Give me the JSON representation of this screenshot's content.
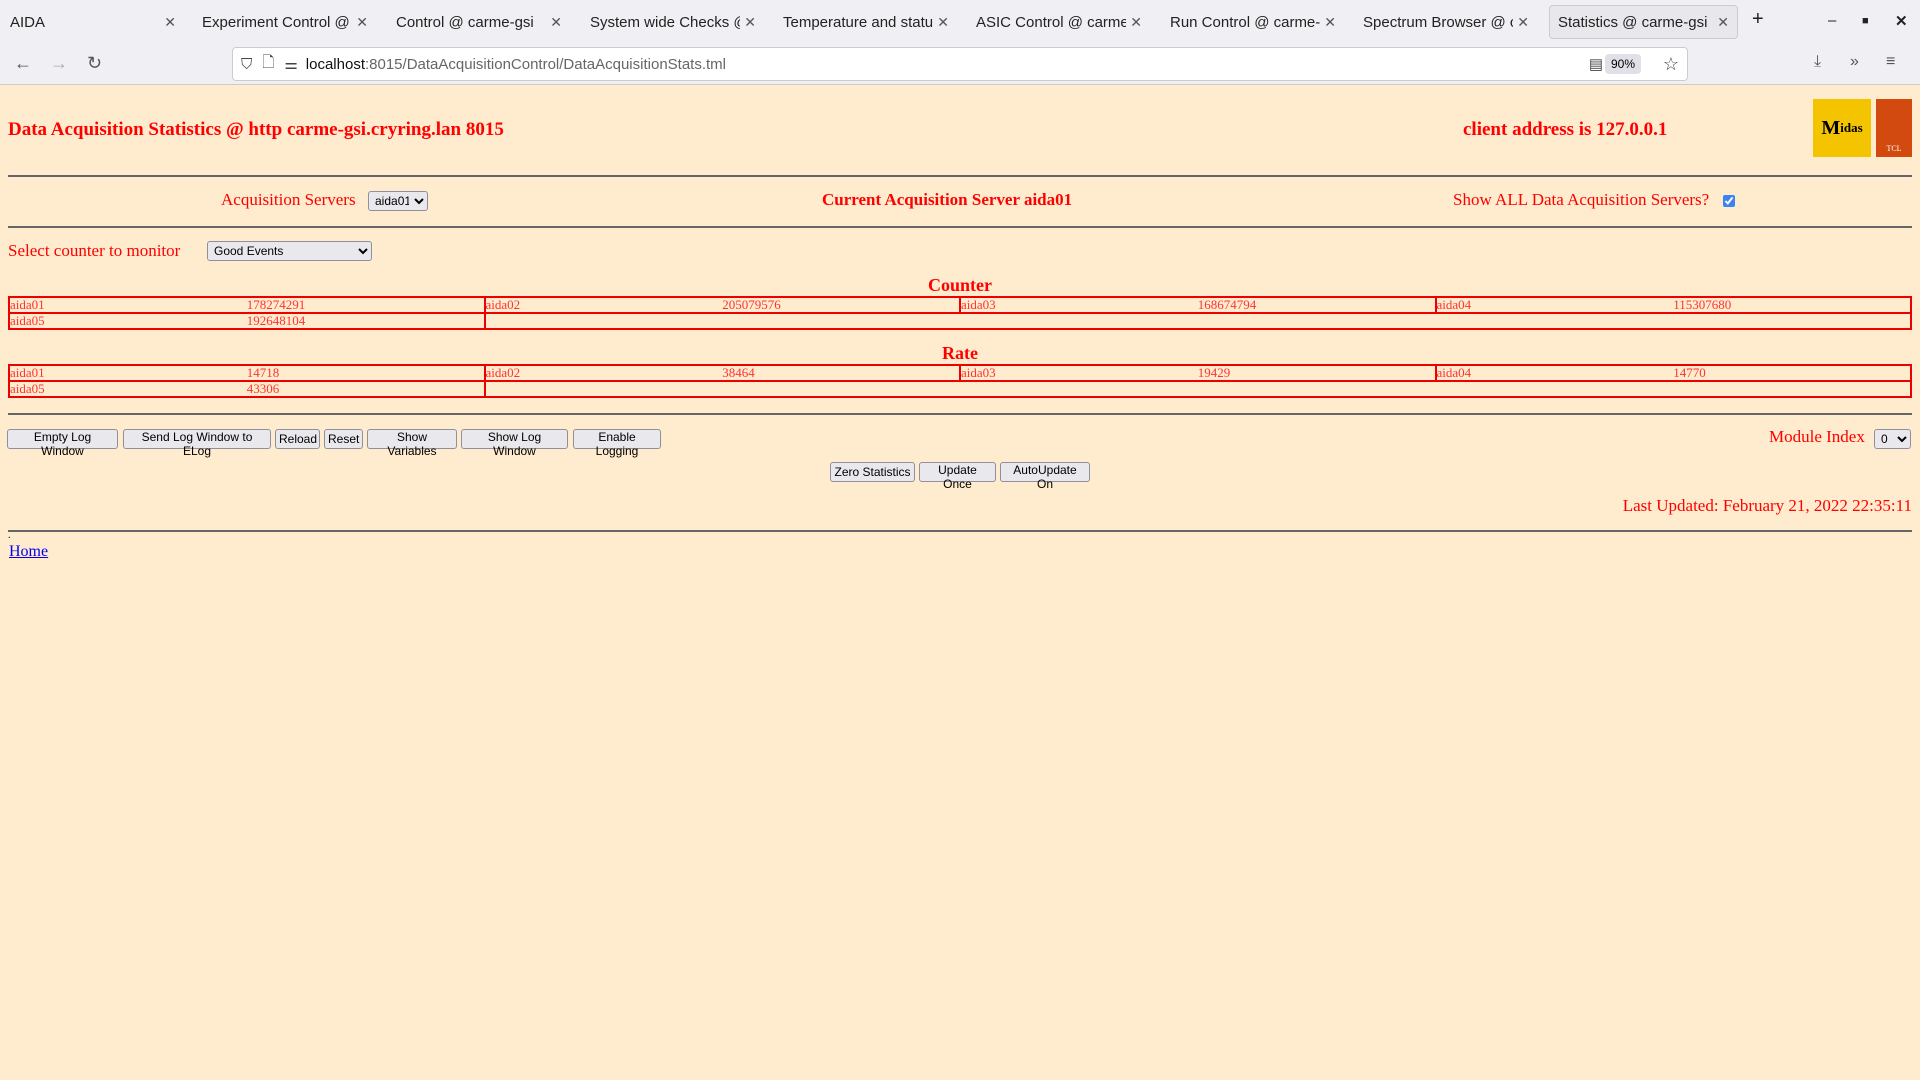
{
  "browser": {
    "tabs": [
      {
        "label": "AIDA"
      },
      {
        "label": "Experiment Control @ carme-gsi"
      },
      {
        "label": "Control @ carme-gsi"
      },
      {
        "label": "System wide Checks @ carme-gsi"
      },
      {
        "label": "Temperature and status @ carme-gsi"
      },
      {
        "label": "ASIC Control @ carme-gsi"
      },
      {
        "label": "Run Control @ carme-gsi"
      },
      {
        "label": "Spectrum Browser @ carme-gsi"
      },
      {
        "label": "Statistics @ carme-gsi",
        "active": true
      }
    ],
    "url_host": "localhost",
    "url_path": ":8015/DataAcquisitionControl/DataAcquisitionStats.tml",
    "zoom": "90%"
  },
  "page": {
    "title": "Data Acquisition Statistics @ http carme-gsi.cryring.lan 8015",
    "client_address": "client address is 127.0.0.1",
    "logo_midas": "Midas",
    "logo_tcl": "TCL POWERED",
    "acq_servers_label": "Acquisition Servers",
    "acq_server_selected": "aida01",
    "current_server": "Current Acquisition Server aida01",
    "show_all_label": "Show ALL Data Acquisition Servers?",
    "show_all_checked": true,
    "counter_label": "Select counter to monitor",
    "counter_selected": "Good Events",
    "counter_heading": "Counter",
    "counter": [
      {
        "server": "aida01",
        "value": "178274291"
      },
      {
        "server": "aida02",
        "value": "205079576"
      },
      {
        "server": "aida03",
        "value": "168674794"
      },
      {
        "server": "aida04",
        "value": "115307680"
      },
      {
        "server": "aida05",
        "value": "192648104"
      }
    ],
    "rate_heading": "Rate",
    "rate": [
      {
        "server": "aida01",
        "value": "14718"
      },
      {
        "server": "aida02",
        "value": "38464"
      },
      {
        "server": "aida03",
        "value": "19429"
      },
      {
        "server": "aida04",
        "value": "14770"
      },
      {
        "server": "aida05",
        "value": "43306"
      }
    ],
    "buttons": [
      "Empty Log Window",
      "Send Log Window to ELog",
      "Reload",
      "Reset",
      "Show Variables",
      "Show Log Window",
      "Enable Logging"
    ],
    "module_index_label": "Module Index",
    "module_index": "0",
    "stats_buttons": [
      "Zero Statistics",
      "Update Once",
      "AutoUpdate On"
    ],
    "last_updated": "Last Updated: February 21, 2022 22:35:11",
    "dot": ".",
    "home_link": "Home"
  }
}
